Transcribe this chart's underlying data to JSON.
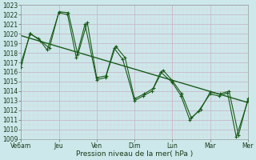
{
  "bg_color": "#cce8ea",
  "grid_major_color": "#c8b8c8",
  "grid_minor_color": "#ddd0dd",
  "line_color": "#1a5c1a",
  "ylim": [
    1009,
    1023
  ],
  "yticks": [
    1009,
    1010,
    1011,
    1012,
    1013,
    1014,
    1015,
    1016,
    1017,
    1018,
    1019,
    1020,
    1021,
    1022,
    1023
  ],
  "xtick_labels": [
    "Ve6am",
    "Jeu",
    "Ven",
    "Dim",
    "Lun",
    "Mar",
    "Mer"
  ],
  "xtick_positions": [
    0,
    2,
    4,
    6,
    8,
    10,
    12
  ],
  "xlabel": "Pression niveau de la mer( hPa )",
  "series1_x": [
    0,
    0.46,
    0.92,
    1.38,
    2.0,
    2.46,
    2.92,
    3.38,
    4.0,
    4.46,
    4.92,
    5.38,
    6.0,
    6.46,
    6.92,
    7.38,
    8.0,
    8.46,
    8.92,
    9.38,
    10.0,
    10.46,
    10.92,
    11.38,
    12.0
  ],
  "series1_y": [
    1016.5,
    1020.0,
    1019.5,
    1018.3,
    1022.2,
    1022.0,
    1017.5,
    1021.0,
    1015.2,
    1015.4,
    1018.5,
    1017.3,
    1013.0,
    1013.5,
    1014.0,
    1016.0,
    1014.9,
    1013.5,
    1011.0,
    1011.9,
    1013.7,
    1013.5,
    1013.8,
    1009.2,
    1013.0
  ],
  "series2_x": [
    0,
    0.5,
    1.0,
    1.5,
    2.0,
    2.5,
    3.0,
    3.5,
    4.0,
    4.5,
    5.0,
    5.5,
    6.0,
    6.5,
    7.0,
    7.5,
    8.0,
    8.5,
    9.0,
    9.5,
    10.0,
    10.5,
    11.0,
    11.5,
    12.0
  ],
  "series2_y": [
    1017.0,
    1020.0,
    1019.3,
    1018.5,
    1022.3,
    1022.2,
    1017.8,
    1021.2,
    1015.4,
    1015.6,
    1018.7,
    1017.5,
    1013.2,
    1013.7,
    1014.3,
    1016.2,
    1015.1,
    1013.7,
    1011.2,
    1012.1,
    1013.9,
    1013.7,
    1014.0,
    1009.4,
    1013.2
  ],
  "trend_x": [
    0,
    12
  ],
  "trend_y": [
    1019.8,
    1012.8
  ]
}
